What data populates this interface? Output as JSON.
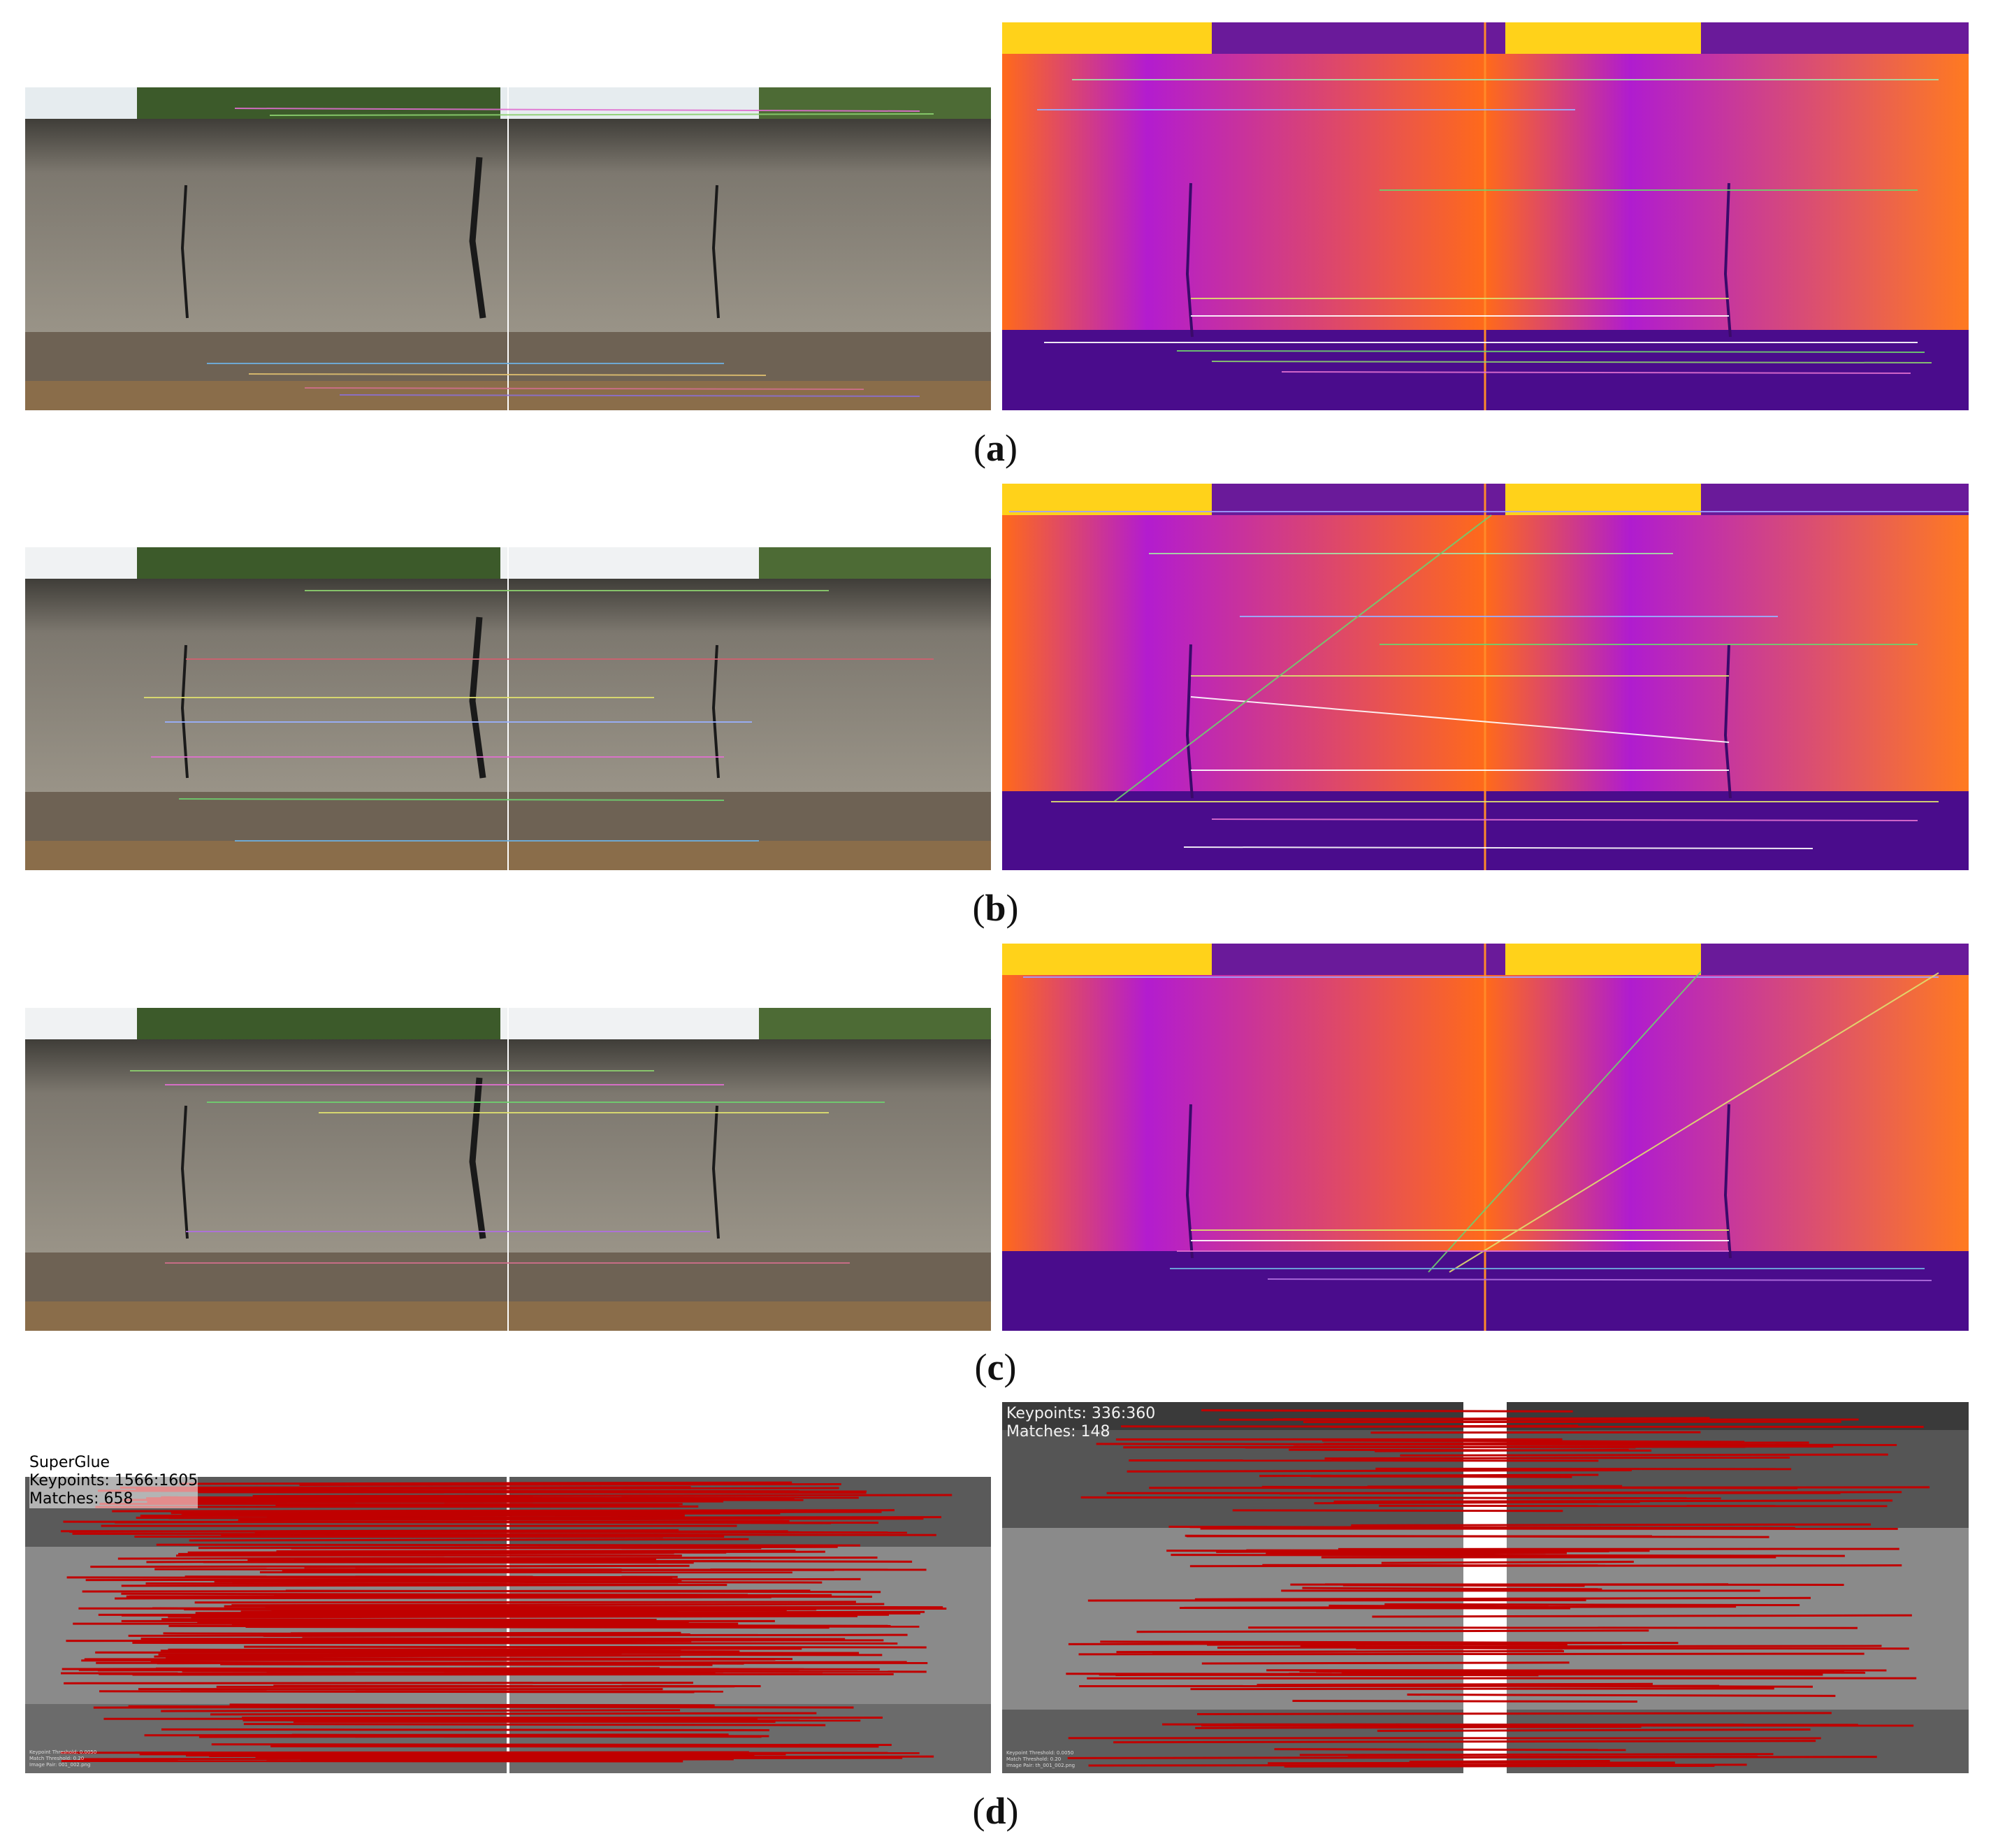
{
  "figure": {
    "panels": [
      {
        "id": "a",
        "caption": "a"
      },
      {
        "id": "b",
        "caption": "b"
      },
      {
        "id": "c",
        "caption": "c"
      },
      {
        "id": "d",
        "caption": "d"
      }
    ],
    "superglue_rgb": {
      "method": "SuperGlue",
      "keypoints": "Keypoints: 1566:1605",
      "matches": "Matches: 658",
      "footer": [
        "Keypoint Threshold: 0.0050",
        "Match Threshold: 0.20",
        "Image Pair: 001_002.png"
      ]
    },
    "superglue_thermal": {
      "keypoints": "Keypoints: 336:360",
      "matches": "Matches: 148",
      "footer": [
        "Keypoint Threshold: 0.0050",
        "Match Threshold: 0.20",
        "Image Pair: th_001_002.png"
      ]
    }
  },
  "colors": {
    "sky": "#e8ecef",
    "wall_rgb": "#8f8a80",
    "wall_rgb_dark": "#3b3a35",
    "ground_rgb": "#6f6356",
    "thermal_bg": "#b01ccf",
    "thermal_warm": "#ff6a1a",
    "thermal_hot": "#ffd21a",
    "thermal_cold": "#4a0c8c",
    "gray_wall": "#9a9a9a",
    "match_red": "#c00000"
  }
}
